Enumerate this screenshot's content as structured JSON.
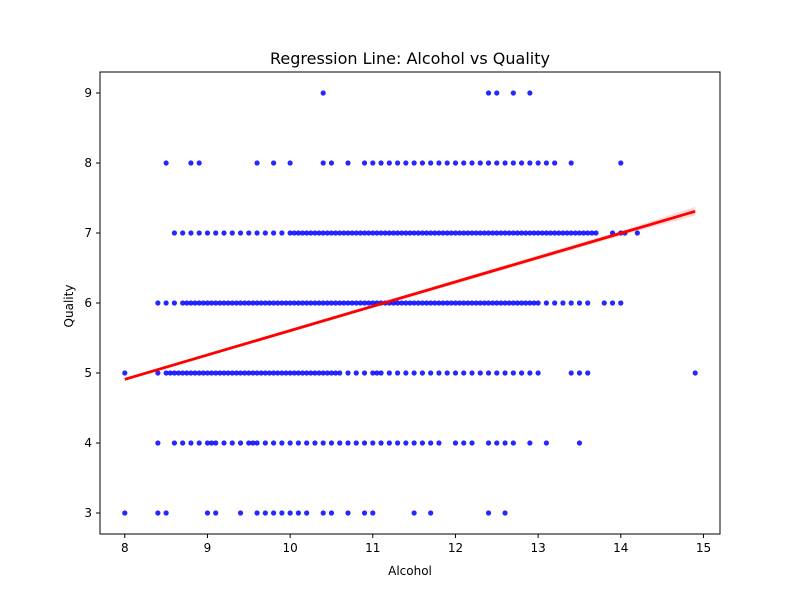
{
  "chart_data": {
    "type": "scatter",
    "title": "Regression Line: Alcohol vs Quality",
    "xlabel": "Alcohol",
    "ylabel": "Quality",
    "xlim": [
      7.7,
      15.2
    ],
    "ylim": [
      2.7,
      9.3
    ],
    "xticks": [
      8,
      9,
      10,
      11,
      12,
      13,
      14,
      15
    ],
    "yticks": [
      3,
      4,
      5,
      6,
      7,
      8,
      9
    ],
    "grid": false,
    "point_color": "#0000ff",
    "line_color": "#ff0000",
    "regression": {
      "x": [
        8.0,
        14.9
      ],
      "y": [
        4.91,
        7.31
      ],
      "ci_band": true
    },
    "points": {
      "3": [
        8.0,
        8.4,
        8.5,
        9.0,
        9.1,
        9.4,
        9.6,
        9.7,
        9.8,
        9.9,
        10.0,
        10.1,
        10.2,
        10.4,
        10.5,
        10.7,
        10.9,
        11.0,
        11.5,
        11.7,
        12.4,
        12.6
      ],
      "4": [
        8.4,
        8.6,
        8.7,
        8.8,
        8.9,
        9.0,
        9.05,
        9.1,
        9.2,
        9.3,
        9.4,
        9.5,
        9.55,
        9.6,
        9.7,
        9.8,
        9.9,
        10.0,
        10.1,
        10.2,
        10.3,
        10.4,
        10.5,
        10.6,
        10.7,
        10.8,
        10.9,
        11.0,
        11.1,
        11.2,
        11.3,
        11.4,
        11.5,
        11.6,
        11.7,
        11.8,
        12.0,
        12.1,
        12.2,
        12.4,
        12.5,
        12.6,
        12.7,
        12.9,
        13.1,
        13.5
      ],
      "5": [
        8.0,
        8.4,
        8.5,
        8.55,
        8.6,
        8.65,
        8.7,
        8.75,
        8.8,
        8.85,
        8.9,
        8.95,
        9.0,
        9.05,
        9.1,
        9.15,
        9.2,
        9.25,
        9.3,
        9.35,
        9.4,
        9.45,
        9.5,
        9.55,
        9.6,
        9.65,
        9.7,
        9.75,
        9.8,
        9.85,
        9.9,
        9.95,
        10.0,
        10.05,
        10.1,
        10.15,
        10.2,
        10.25,
        10.3,
        10.35,
        10.4,
        10.45,
        10.5,
        10.55,
        10.6,
        10.7,
        10.8,
        10.9,
        11.0,
        11.05,
        11.1,
        11.2,
        11.3,
        11.4,
        11.5,
        11.6,
        11.7,
        11.8,
        11.9,
        12.0,
        12.1,
        12.2,
        12.3,
        12.4,
        12.5,
        12.6,
        12.7,
        12.8,
        12.9,
        13.0,
        13.4,
        13.5,
        13.6,
        14.9
      ],
      "6": [
        8.4,
        8.5,
        8.6,
        8.7,
        8.75,
        8.8,
        8.85,
        8.9,
        8.95,
        9.0,
        9.05,
        9.1,
        9.15,
        9.2,
        9.25,
        9.3,
        9.35,
        9.4,
        9.45,
        9.5,
        9.55,
        9.6,
        9.65,
        9.7,
        9.75,
        9.8,
        9.85,
        9.9,
        9.95,
        10.0,
        10.05,
        10.1,
        10.15,
        10.2,
        10.25,
        10.3,
        10.35,
        10.4,
        10.45,
        10.5,
        10.55,
        10.6,
        10.65,
        10.7,
        10.75,
        10.8,
        10.85,
        10.9,
        10.95,
        11.0,
        11.05,
        11.1,
        11.15,
        11.2,
        11.25,
        11.3,
        11.35,
        11.4,
        11.45,
        11.5,
        11.55,
        11.6,
        11.65,
        11.7,
        11.75,
        11.8,
        11.85,
        11.9,
        11.95,
        12.0,
        12.05,
        12.1,
        12.15,
        12.2,
        12.25,
        12.3,
        12.35,
        12.4,
        12.45,
        12.5,
        12.55,
        12.6,
        12.65,
        12.7,
        12.75,
        12.8,
        12.85,
        12.9,
        12.95,
        13.0,
        13.1,
        13.2,
        13.3,
        13.4,
        13.5,
        13.6,
        13.8,
        13.9,
        14.0
      ],
      "7": [
        8.6,
        8.7,
        8.8,
        8.9,
        9.0,
        9.1,
        9.2,
        9.3,
        9.4,
        9.5,
        9.6,
        9.7,
        9.8,
        9.9,
        10.0,
        10.05,
        10.1,
        10.15,
        10.2,
        10.25,
        10.3,
        10.35,
        10.4,
        10.45,
        10.5,
        10.55,
        10.6,
        10.65,
        10.7,
        10.75,
        10.8,
        10.85,
        10.9,
        10.95,
        11.0,
        11.05,
        11.1,
        11.15,
        11.2,
        11.25,
        11.3,
        11.35,
        11.4,
        11.45,
        11.5,
        11.55,
        11.6,
        11.65,
        11.7,
        11.75,
        11.8,
        11.85,
        11.9,
        11.95,
        12.0,
        12.05,
        12.1,
        12.15,
        12.2,
        12.25,
        12.3,
        12.35,
        12.4,
        12.45,
        12.5,
        12.55,
        12.6,
        12.65,
        12.7,
        12.75,
        12.8,
        12.85,
        12.9,
        12.95,
        13.0,
        13.05,
        13.1,
        13.15,
        13.2,
        13.25,
        13.3,
        13.35,
        13.4,
        13.45,
        13.5,
        13.55,
        13.6,
        13.65,
        13.7,
        13.9,
        14.0,
        14.05,
        14.2
      ],
      "8": [
        8.5,
        8.8,
        8.9,
        9.6,
        9.8,
        10.0,
        10.4,
        10.5,
        10.7,
        10.9,
        11.0,
        11.1,
        11.2,
        11.3,
        11.4,
        11.5,
        11.6,
        11.7,
        11.8,
        11.9,
        12.0,
        12.1,
        12.2,
        12.3,
        12.4,
        12.5,
        12.6,
        12.7,
        12.8,
        12.9,
        13.0,
        13.1,
        13.2,
        13.4,
        14.0
      ],
      "9": [
        10.4,
        12.4,
        12.5,
        12.7,
        12.9
      ]
    }
  }
}
